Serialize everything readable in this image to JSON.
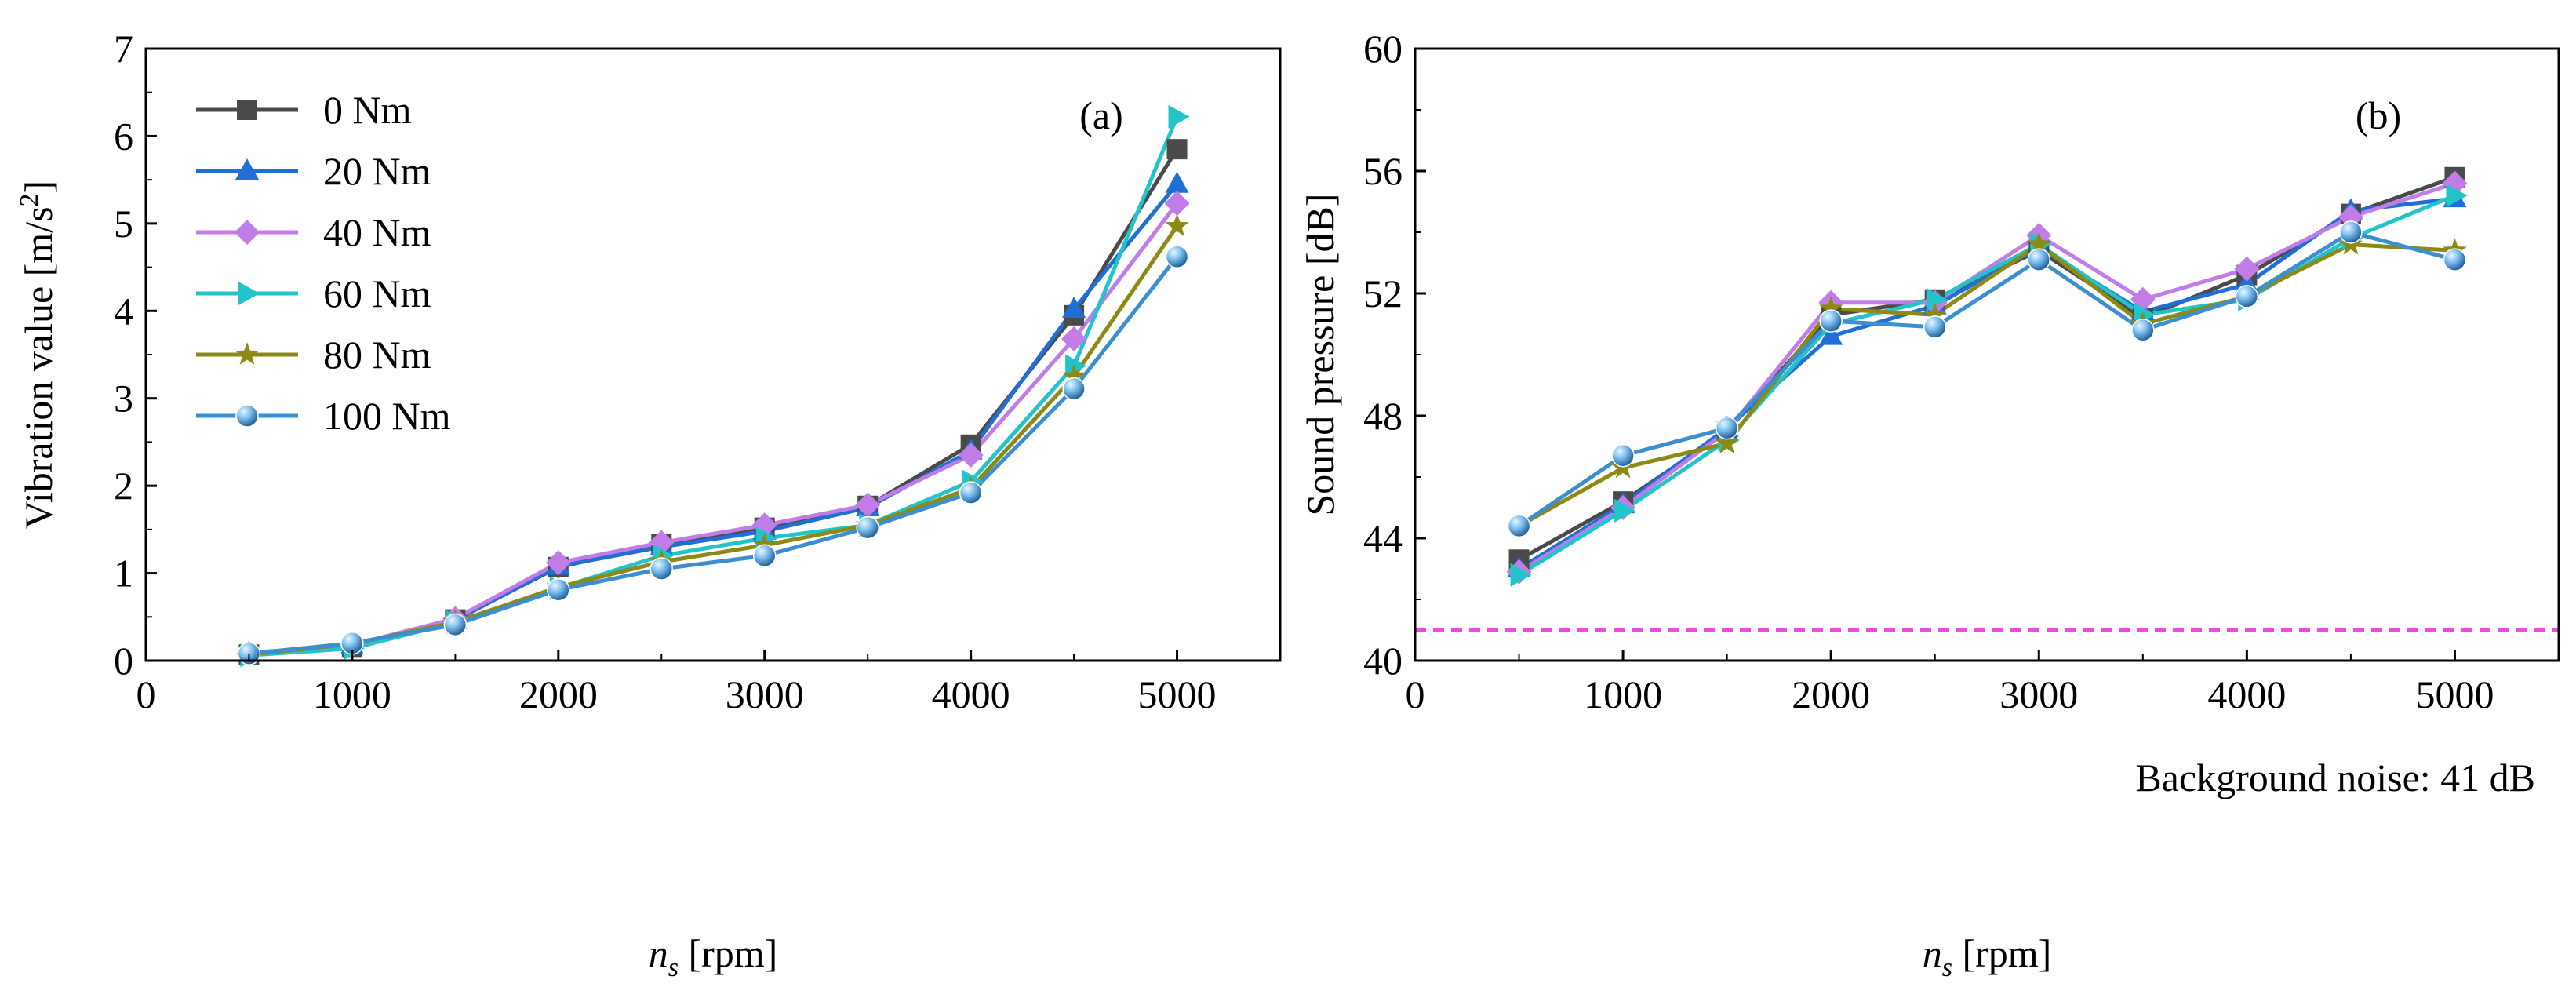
{
  "colors": {
    "series": [
      "#4a4a4a",
      "#1f6fd6",
      "#c27ce8",
      "#22c3c9",
      "#8c8a14",
      "#3b8fd0"
    ],
    "reference": "#e94ce0"
  },
  "chart_data": [
    {
      "type": "line",
      "panel_label": "(a)",
      "xlabel": "n",
      "xlabel_sub": "s",
      "xlabel_unit": " [rpm]",
      "ylabel": "Vibration value [m/s",
      "ylabel_sup": "2",
      "ylabel_end": "]",
      "xlim": [
        0,
        5500
      ],
      "ylim": [
        0,
        7
      ],
      "xticks": [
        0,
        1000,
        2000,
        3000,
        4000,
        5000
      ],
      "yticks": [
        0,
        1,
        2,
        3,
        4,
        5,
        6,
        7
      ],
      "legend": "top-left",
      "x": [
        500,
        1000,
        1500,
        2000,
        2500,
        3000,
        3500,
        4000,
        4500,
        5000
      ],
      "series": [
        {
          "name": "0 Nm",
          "marker": "square",
          "values": [
            0.07,
            0.15,
            0.47,
            1.07,
            1.33,
            1.52,
            1.77,
            2.47,
            3.95,
            5.85
          ]
        },
        {
          "name": "20 Nm",
          "marker": "triangle-up",
          "values": [
            0.09,
            0.17,
            0.46,
            1.08,
            1.3,
            1.48,
            1.75,
            2.4,
            4.02,
            5.45
          ]
        },
        {
          "name": "40 Nm",
          "marker": "diamond",
          "values": [
            0.08,
            0.18,
            0.48,
            1.12,
            1.35,
            1.55,
            1.78,
            2.35,
            3.68,
            5.23
          ]
        },
        {
          "name": "60 Nm",
          "marker": "triangle-right",
          "values": [
            0.06,
            0.14,
            0.44,
            0.83,
            1.2,
            1.4,
            1.55,
            2.05,
            3.37,
            6.22
          ]
        },
        {
          "name": "80 Nm",
          "marker": "star",
          "values": [
            0.07,
            0.19,
            0.44,
            0.84,
            1.13,
            1.32,
            1.55,
            1.97,
            3.25,
            4.97
          ]
        },
        {
          "name": "100 Nm",
          "marker": "sphere",
          "values": [
            0.08,
            0.2,
            0.41,
            0.81,
            1.05,
            1.2,
            1.52,
            1.92,
            3.11,
            4.62
          ]
        }
      ]
    },
    {
      "type": "line",
      "panel_label": "(b)",
      "xlabel": "n",
      "xlabel_sub": "s",
      "xlabel_unit": " [rpm]",
      "ylabel": "Sound pressure [dB]",
      "xlim": [
        0,
        5500
      ],
      "ylim": [
        40,
        60
      ],
      "xticks": [
        0,
        1000,
        2000,
        3000,
        4000,
        5000
      ],
      "yticks": [
        40,
        44,
        48,
        52,
        56,
        60
      ],
      "x": [
        500,
        1000,
        1500,
        2000,
        2500,
        3000,
        3500,
        4000,
        4500,
        5000
      ],
      "reference_line": {
        "value": 41,
        "label": "Background noise: 41 dB"
      },
      "series": [
        {
          "name": "0 Nm",
          "marker": "square",
          "values": [
            43.3,
            45.2,
            47.5,
            51.3,
            51.8,
            53.4,
            51.2,
            52.6,
            54.6,
            55.8
          ]
        },
        {
          "name": "20 Nm",
          "marker": "triangle-up",
          "values": [
            43.0,
            45.1,
            47.6,
            50.6,
            51.6,
            53.5,
            51.4,
            52.3,
            54.7,
            55.1
          ]
        },
        {
          "name": "40 Nm",
          "marker": "diamond",
          "values": [
            42.9,
            45.0,
            47.5,
            51.7,
            51.7,
            53.9,
            51.8,
            52.8,
            54.5,
            55.6
          ]
        },
        {
          "name": "60 Nm",
          "marker": "triangle-right",
          "values": [
            42.8,
            44.9,
            47.2,
            51.0,
            51.8,
            53.6,
            51.3,
            51.8,
            53.8,
            55.2
          ]
        },
        {
          "name": "80 Nm",
          "marker": "star",
          "values": [
            44.4,
            46.3,
            47.1,
            51.5,
            51.3,
            53.6,
            51.0,
            51.9,
            53.6,
            53.4
          ]
        },
        {
          "name": "100 Nm",
          "marker": "sphere",
          "values": [
            44.4,
            46.7,
            47.6,
            51.1,
            50.9,
            53.1,
            50.8,
            51.9,
            54.0,
            53.1
          ]
        }
      ]
    }
  ]
}
